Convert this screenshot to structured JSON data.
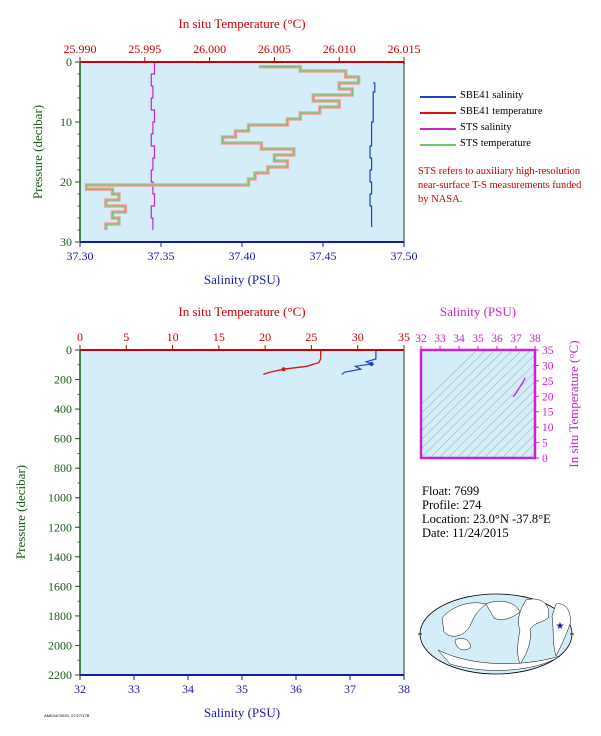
{
  "colors": {
    "plot_bg": "#d3eef8",
    "salinity_axis": "#1a1aa6",
    "temperature_axis": "#cc0000",
    "pressure_axis": "#1a5a1a",
    "sbe41_salinity": "#1d3fcc",
    "sbe41_temperature": "#dd1111",
    "sts_salinity": "#cc22cc",
    "sts_temperature": "#6fc86f",
    "sts_temperature_fill": "#f5a0a0",
    "ts_axis": "#cc22cc"
  },
  "legend": {
    "items": [
      {
        "label": "SBE41 salinity",
        "color": "#1d3fcc"
      },
      {
        "label": "SBE41 temperature",
        "color": "#dd1111"
      },
      {
        "label": "STS salinity",
        "color": "#cc22cc"
      },
      {
        "label": "STS temperature",
        "color": "#6fc86f"
      }
    ],
    "note": "STS refers to auxiliary high-resolution near-surface T-S measurements funded by NASA."
  },
  "info": {
    "float": "Float:  7699",
    "profile": "Profile:  274",
    "location": "Location:  23.0°N  -37.8°E",
    "date": "Date:  11/24/2015"
  },
  "stamp": "AMK04C0820, 07/27/17B",
  "chart_data": [
    {
      "type": "line",
      "panel": "near-surface profile",
      "title": "",
      "x_top_label": "In situ Temperature (°C)",
      "x_top_ticks": [
        "25.990",
        "25.995",
        "26.000",
        "26.005",
        "26.010",
        "26.015"
      ],
      "x_top_lim": [
        25.99,
        26.015
      ],
      "x_bottom_label": "Salinity (PSU)",
      "x_bottom_ticks": [
        "37.30",
        "37.35",
        "37.40",
        "37.45",
        "37.50"
      ],
      "x_bottom_lim": [
        37.3,
        37.5
      ],
      "ylabel": "Pressure (decibar)",
      "y_ticks": [
        "0",
        "10",
        "20",
        "30"
      ],
      "ylim": [
        0,
        30
      ],
      "y_inverted": true,
      "series": [
        {
          "name": "SBE41 salinity",
          "axis": "salinity",
          "pressure": [
            3.5,
            5,
            8,
            10,
            12,
            14,
            16,
            18,
            20,
            22,
            24,
            26,
            27.5
          ],
          "values": [
            37.481,
            37.482,
            37.481,
            37.481,
            37.48,
            37.48,
            37.479,
            37.48,
            37.479,
            37.48,
            37.479,
            37.48,
            37.48
          ]
        },
        {
          "name": "SBE41 temperature",
          "axis": "temperature",
          "pressure": [
            0,
            0.3
          ],
          "values": [
            25.99,
            26.015
          ]
        },
        {
          "name": "STS salinity",
          "axis": "salinity",
          "pressure": [
            0,
            2,
            4,
            6,
            8,
            10,
            12,
            14,
            16,
            18,
            20,
            22,
            24,
            26,
            28
          ],
          "values": [
            37.344,
            37.346,
            37.344,
            37.345,
            37.344,
            37.346,
            37.345,
            37.344,
            37.346,
            37.345,
            37.344,
            37.345,
            37.346,
            37.344,
            37.345
          ]
        },
        {
          "name": "STS temperature",
          "axis": "temperature",
          "pressure": [
            0.8,
            1.5,
            2.5,
            3.5,
            4.5,
            5.5,
            6.5,
            7.5,
            8.5,
            9.5,
            10.5,
            11.5,
            12.5,
            13.5,
            14.5,
            15.5,
            16.5,
            17.5,
            18.5,
            19.5,
            20.5,
            21.2,
            22,
            23,
            24,
            25,
            26,
            27,
            28
          ],
          "values": [
            26.0038,
            26.007,
            26.0105,
            26.0115,
            26.01,
            26.011,
            26.008,
            26.01,
            26.0085,
            26.007,
            26.006,
            26.003,
            26.002,
            26.001,
            26.004,
            26.0065,
            26.005,
            26.006,
            26.0045,
            26.0035,
            26.003,
            25.9905,
            25.9925,
            25.993,
            25.992,
            25.9935,
            25.9925,
            25.993,
            25.992
          ]
        }
      ]
    },
    {
      "type": "line",
      "panel": "full profile",
      "x_top_label": "In situ Temperature (°C)",
      "x_top_ticks": [
        "0",
        "5",
        "10",
        "15",
        "20",
        "25",
        "30",
        "35"
      ],
      "x_top_lim": [
        0,
        35
      ],
      "x_bottom_label": "Salinity (PSU)",
      "x_bottom_ticks": [
        "32",
        "33",
        "34",
        "35",
        "36",
        "37",
        "38"
      ],
      "x_bottom_lim": [
        32,
        38
      ],
      "ylabel": "Pressure (decibar)",
      "y_ticks": [
        "0",
        "200",
        "400",
        "600",
        "800",
        "1000",
        "1200",
        "1400",
        "1600",
        "1800",
        "2000",
        "2200"
      ],
      "ylim": [
        0,
        2200
      ],
      "y_inverted": true,
      "series": [
        {
          "name": "SBE41 temperature",
          "axis": "temperature",
          "pressure": [
            0,
            60,
            85,
            110,
            130,
            150,
            165
          ],
          "values": [
            26.0,
            26.0,
            25.8,
            24.5,
            22.0,
            20.5,
            19.8
          ]
        },
        {
          "name": "SBE41 salinity",
          "axis": "salinity",
          "pressure": [
            0,
            60,
            80,
            95,
            110,
            130,
            150,
            165
          ],
          "values": [
            37.48,
            37.48,
            37.3,
            37.4,
            37.1,
            37.2,
            36.9,
            36.85
          ]
        }
      ]
    },
    {
      "type": "scatter",
      "panel": "T-S diagram",
      "x_top_label": "Salinity (PSU)",
      "x_ticks": [
        "32",
        "33",
        "34",
        "35",
        "36",
        "37",
        "38"
      ],
      "xlim": [
        32,
        38
      ],
      "ylabel": "In situ Temperature (°C)",
      "y_ticks": [
        "0",
        "5",
        "10",
        "15",
        "20",
        "25",
        "30",
        "35"
      ],
      "ylim": [
        0,
        35
      ],
      "series": [
        {
          "name": "profile",
          "salinity": [
            36.85,
            37.0,
            37.2,
            37.4,
            37.48
          ],
          "temperature": [
            19.8,
            21.0,
            23.0,
            25.0,
            26.0
          ]
        }
      ]
    }
  ]
}
